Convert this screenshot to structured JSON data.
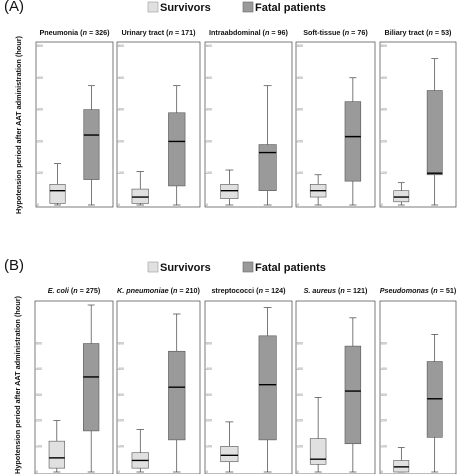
{
  "colors": {
    "survivors": "#e0e0e0",
    "fatal": "#9a9a9a",
    "stroke": "#222222"
  },
  "chart_data": [
    {
      "type": "box",
      "panel_label": "(A)",
      "legend": [
        "Survivors",
        "Fatal patients"
      ],
      "ylabel": "Hypotension period after AAT administration (hour)",
      "ylim": [
        0,
        500
      ],
      "yticks": [
        "0",
        "100",
        "200",
        "300",
        "400",
        "500"
      ],
      "groups": [
        {
          "title": "Pneumonia (",
          "n_label": "n",
          "n_value": " = 326)",
          "series": [
            {
              "name": "Survivors",
              "min": 0,
              "q1": 5,
              "median": 45,
              "q3": 65,
              "max": 130
            },
            {
              "name": "Fatal patients",
              "min": 0,
              "q1": 80,
              "median": 220,
              "q3": 300,
              "max": 375
            }
          ]
        },
        {
          "title": "Urinary tract (",
          "n_label": "n",
          "n_value": " = 171)",
          "series": [
            {
              "name": "Survivors",
              "min": 0,
              "q1": 5,
              "median": 25,
              "q3": 50,
              "max": 105
            },
            {
              "name": "Fatal patients",
              "min": 0,
              "q1": 60,
              "median": 200,
              "q3": 290,
              "max": 375
            }
          ]
        },
        {
          "title": "Intraabdominal (",
          "n_label": "n",
          "n_value": " = 96)",
          "series": [
            {
              "name": "Survivors",
              "min": 0,
              "q1": 20,
              "median": 45,
              "q3": 65,
              "max": 110
            },
            {
              "name": "Fatal patients",
              "min": 0,
              "q1": 45,
              "median": 165,
              "q3": 190,
              "max": 375
            }
          ]
        },
        {
          "title": "Soft-tissue (",
          "n_label": "n",
          "n_value": " = 76)",
          "series": [
            {
              "name": "Survivors",
              "min": 0,
              "q1": 25,
              "median": 45,
              "q3": 65,
              "max": 95
            },
            {
              "name": "Fatal patients",
              "min": 0,
              "q1": 75,
              "median": 215,
              "q3": 325,
              "max": 400
            }
          ]
        },
        {
          "title": "Biliary tract (",
          "n_label": "n",
          "n_value": " = 53)",
          "series": [
            {
              "name": "Survivors",
              "min": 0,
              "q1": 10,
              "median": 25,
              "q3": 45,
              "max": 70
            },
            {
              "name": "Fatal patients",
              "min": 0,
              "q1": 95,
              "median": 100,
              "q3": 360,
              "max": 460
            }
          ]
        }
      ]
    },
    {
      "type": "box",
      "panel_label": "(B)",
      "legend": [
        "Survivors",
        "Fatal patients"
      ],
      "ylabel": "Hypotension period after AAT administration (hour)",
      "ylim": [
        0,
        500
      ],
      "yticks": [
        "0",
        "100",
        "200",
        "300",
        "400",
        "500"
      ],
      "groups": [
        {
          "title": "",
          "title_italic": "E. coli",
          "n_label": "n",
          "n_value": " = 275)",
          "title_tail": " (",
          "series": [
            {
              "name": "Survivors",
              "min": 0,
              "q1": 15,
              "median": 55,
              "q3": 120,
              "max": 200
            },
            {
              "name": "Fatal patients",
              "min": 0,
              "q1": 160,
              "median": 370,
              "q3": 500,
              "max": 650
            }
          ]
        },
        {
          "title": "",
          "title_italic": "K. pneumoniae",
          "n_label": "n",
          "n_value": " = 210)",
          "title_tail": " (",
          "series": [
            {
              "name": "Survivors",
              "min": 0,
              "q1": 15,
              "median": 45,
              "q3": 75,
              "max": 165
            },
            {
              "name": "Fatal patients",
              "min": 0,
              "q1": 125,
              "median": 330,
              "q3": 470,
              "max": 615
            }
          ]
        },
        {
          "title": "streptococci (",
          "n_label": "n",
          "n_value": " = 124)",
          "series": [
            {
              "name": "Survivors",
              "min": 0,
              "q1": 40,
              "median": 65,
              "q3": 100,
              "max": 195
            },
            {
              "name": "Fatal patients",
              "min": 0,
              "q1": 125,
              "median": 340,
              "q3": 530,
              "max": 640
            }
          ]
        },
        {
          "title": "",
          "title_italic": "S. aureus",
          "n_label": "n",
          "n_value": " = 121)",
          "title_tail": " (",
          "series": [
            {
              "name": "Survivors",
              "min": 0,
              "q1": 30,
              "median": 50,
              "q3": 130,
              "max": 290
            },
            {
              "name": "Fatal patients",
              "min": 0,
              "q1": 110,
              "median": 315,
              "q3": 490,
              "max": 600
            }
          ]
        },
        {
          "title": "",
          "title_italic": "Pseudomonas",
          "n_label": "n",
          "n_value": " = 51)",
          "title_tail": " (",
          "series": [
            {
              "name": "Survivors",
              "min": 0,
              "q1": 0,
              "median": 20,
              "q3": 45,
              "max": 95
            },
            {
              "name": "Fatal patients",
              "min": 0,
              "q1": 135,
              "median": 285,
              "q3": 430,
              "max": 535
            }
          ]
        }
      ]
    }
  ]
}
